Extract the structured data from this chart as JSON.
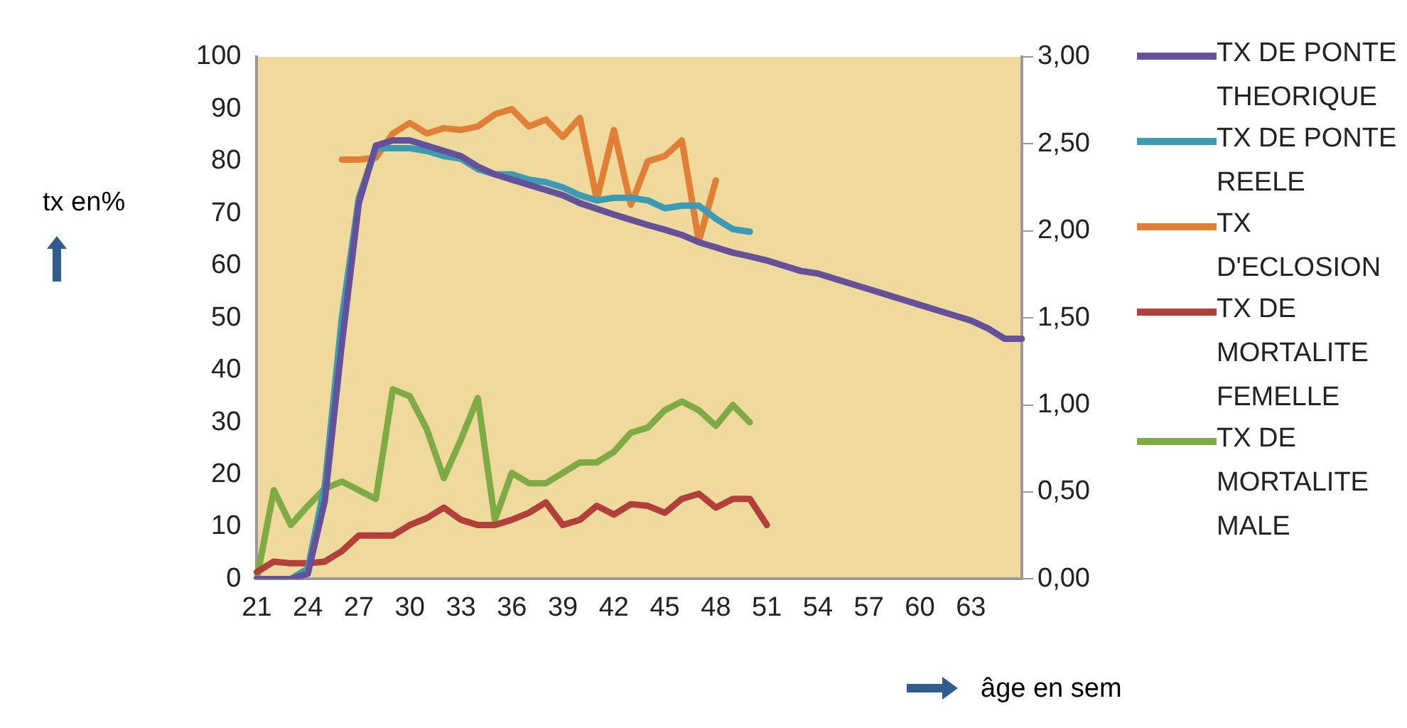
{
  "chart_data": {
    "type": "line",
    "xlabel": "âge en sem",
    "ylabel": "tx en%",
    "categories": [
      "21",
      null,
      null,
      "24",
      null,
      null,
      "27",
      null,
      null,
      "30",
      null,
      null,
      "33",
      null,
      null,
      "36",
      null,
      null,
      "39",
      null,
      null,
      "42",
      null,
      null,
      "45",
      null,
      null,
      "48",
      null,
      null,
      "51",
      null,
      null,
      "54",
      null,
      null,
      "57",
      null,
      null,
      "60",
      null,
      null,
      "63",
      null,
      null,
      null
    ],
    "ylim": [
      0,
      100
    ],
    "yticks": [
      0,
      10,
      20,
      30,
      40,
      50,
      60,
      70,
      80,
      90,
      100
    ],
    "y2lim": [
      0,
      3
    ],
    "y2ticks": [
      {
        "value": 0,
        "label": "0,00"
      },
      {
        "value": 0.5,
        "label": "0,50"
      },
      {
        "value": 1,
        "label": "1,00"
      },
      {
        "value": 1.5,
        "label": "1,50"
      },
      {
        "value": 2,
        "label": "2,00"
      },
      {
        "value": 2.5,
        "label": "2,50"
      },
      {
        "value": 3,
        "label": "3,00"
      }
    ],
    "grid": false,
    "legend": "right",
    "marker": "none",
    "series": [
      {
        "name": "TX DE PONTE THEORIQUE",
        "color": "#65519a",
        "values": [
          0,
          0,
          0,
          1,
          15,
          45,
          72,
          83,
          84,
          84,
          83,
          82,
          81,
          79,
          77.5,
          76.5,
          75.5,
          74.5,
          73.5,
          72,
          70.9,
          69.8,
          68.8,
          67.8,
          66.9,
          65.9,
          64.5,
          63.5,
          62.5,
          61.8,
          61,
          60,
          59,
          58.5,
          57.5,
          56.5,
          55.5,
          54.5,
          53.5,
          52.5,
          51.5,
          50.5,
          49.5,
          48,
          46,
          46
        ]
      },
      {
        "name": "TX DE PONTE REELE",
        "color": "#3b9bb5",
        "values": [
          0,
          0,
          0,
          2,
          18,
          50,
          73,
          82.5,
          82.5,
          82.5,
          82,
          81,
          80.5,
          78.5,
          77.5,
          77.5,
          76.5,
          76,
          75,
          73.5,
          72.5,
          73,
          73,
          72.5,
          71,
          71.5,
          71.5,
          69,
          67,
          66.5,
          null,
          null,
          null,
          null,
          null,
          null,
          null,
          null,
          null,
          null,
          null,
          null,
          null,
          null,
          null,
          null
        ]
      },
      {
        "name": "TX D'ECLOSION",
        "color": "#e07f35",
        "axis": "y2",
        "values": [
          null,
          null,
          null,
          null,
          null,
          2.41,
          2.41,
          2.42,
          2.56,
          2.62,
          2.56,
          2.59,
          2.58,
          2.6,
          2.67,
          2.7,
          2.6,
          2.64,
          2.54,
          2.65,
          2.18,
          2.58,
          2.15,
          2.4,
          2.43,
          2.52,
          1.94,
          2.29,
          null,
          null,
          null,
          null,
          null,
          null,
          null,
          null,
          null,
          null,
          null,
          null,
          null,
          null,
          null,
          null,
          null,
          null
        ]
      },
      {
        "name": "TX DE MORTALITE FEMELLE",
        "color": "#b23f3a",
        "axis": "y2",
        "values": [
          0.04,
          0.1,
          0.09,
          0.09,
          0.1,
          0.16,
          0.25,
          0.25,
          0.25,
          0.31,
          0.35,
          0.41,
          0.34,
          0.31,
          0.31,
          0.34,
          0.38,
          0.44,
          0.31,
          0.34,
          0.42,
          0.37,
          0.43,
          0.42,
          0.38,
          0.46,
          0.49,
          0.41,
          0.46,
          0.46,
          0.31,
          null,
          null,
          null,
          null,
          null,
          null,
          null,
          null,
          null,
          null,
          null,
          null,
          null,
          null,
          null
        ]
      },
      {
        "name": "TX DE MORTALITE MALE",
        "color": "#7fab45",
        "axis": "y2",
        "values": [
          0,
          0.51,
          0.31,
          0.42,
          0.52,
          0.56,
          0.51,
          0.46,
          1.09,
          1.05,
          0.86,
          0.58,
          0.8,
          1.04,
          0.34,
          0.61,
          0.55,
          0.55,
          0.61,
          0.67,
          0.67,
          0.73,
          0.84,
          0.87,
          0.97,
          1.02,
          0.97,
          0.88,
          1,
          0.9,
          null,
          null,
          null,
          null,
          null,
          null,
          null,
          null,
          null,
          null,
          null,
          null,
          null,
          null,
          null,
          null
        ]
      }
    ]
  }
}
